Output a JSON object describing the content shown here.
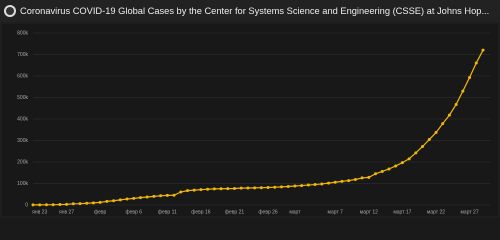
{
  "chart_data": {
    "type": "line",
    "title": "Coronavirus COVID-19 Global Cases by the Center for Systems Science and Engineering (CSSE) at Johns Hop...",
    "categories": [
      null,
      "янв 23",
      null,
      null,
      null,
      "янв 27",
      null,
      null,
      null,
      null,
      "февр",
      null,
      null,
      null,
      null,
      "февр 6",
      null,
      null,
      null,
      null,
      "февр 11",
      null,
      null,
      null,
      null,
      "февр 16",
      null,
      null,
      null,
      null,
      "февр 21",
      null,
      null,
      null,
      null,
      "февр 26",
      null,
      null,
      null,
      "март",
      null,
      null,
      null,
      null,
      null,
      "март 7",
      null,
      null,
      null,
      null,
      "март 12",
      null,
      null,
      null,
      null,
      "март 17",
      null,
      null,
      null,
      null,
      "март 22",
      null,
      null,
      null,
      null,
      "март 27",
      null,
      null
    ],
    "values": [
      555,
      654,
      941,
      1434,
      2118,
      2927,
      5578,
      6166,
      8234,
      9927,
      12038,
      16787,
      19881,
      23892,
      27635,
      30794,
      34391,
      37120,
      40150,
      42762,
      44802,
      45221,
      60368,
      66885,
      69030,
      71224,
      73258,
      75136,
      75639,
      76197,
      76823,
      78579,
      78965,
      79568,
      80413,
      81395,
      82754,
      84120,
      86011,
      88369,
      90306,
      92840,
      95120,
      97886,
      101801,
      105847,
      109821,
      113590,
      118620,
      125875,
      128352,
      145205,
      156101,
      167454,
      181574,
      197102,
      214821,
      242570,
      272208,
      304507,
      336953,
      378231,
      418041,
      467653,
      529591,
      593291,
      660706,
      720117
    ],
    "color": "#f2b705",
    "ylim": [
      0,
      800000
    ],
    "yticks": [
      0,
      {
        "value": 100000,
        "label": "100k"
      },
      {
        "value": 200000,
        "label": "200k"
      },
      {
        "value": 300000,
        "label": "300k"
      },
      {
        "value": 400000,
        "label": "400k"
      },
      {
        "value": 500000,
        "label": "500k"
      },
      {
        "value": 600000,
        "label": "600k"
      },
      {
        "value": 700000,
        "label": "700k"
      },
      {
        "value": 800000,
        "label": "800k"
      }
    ],
    "grid": true
  }
}
